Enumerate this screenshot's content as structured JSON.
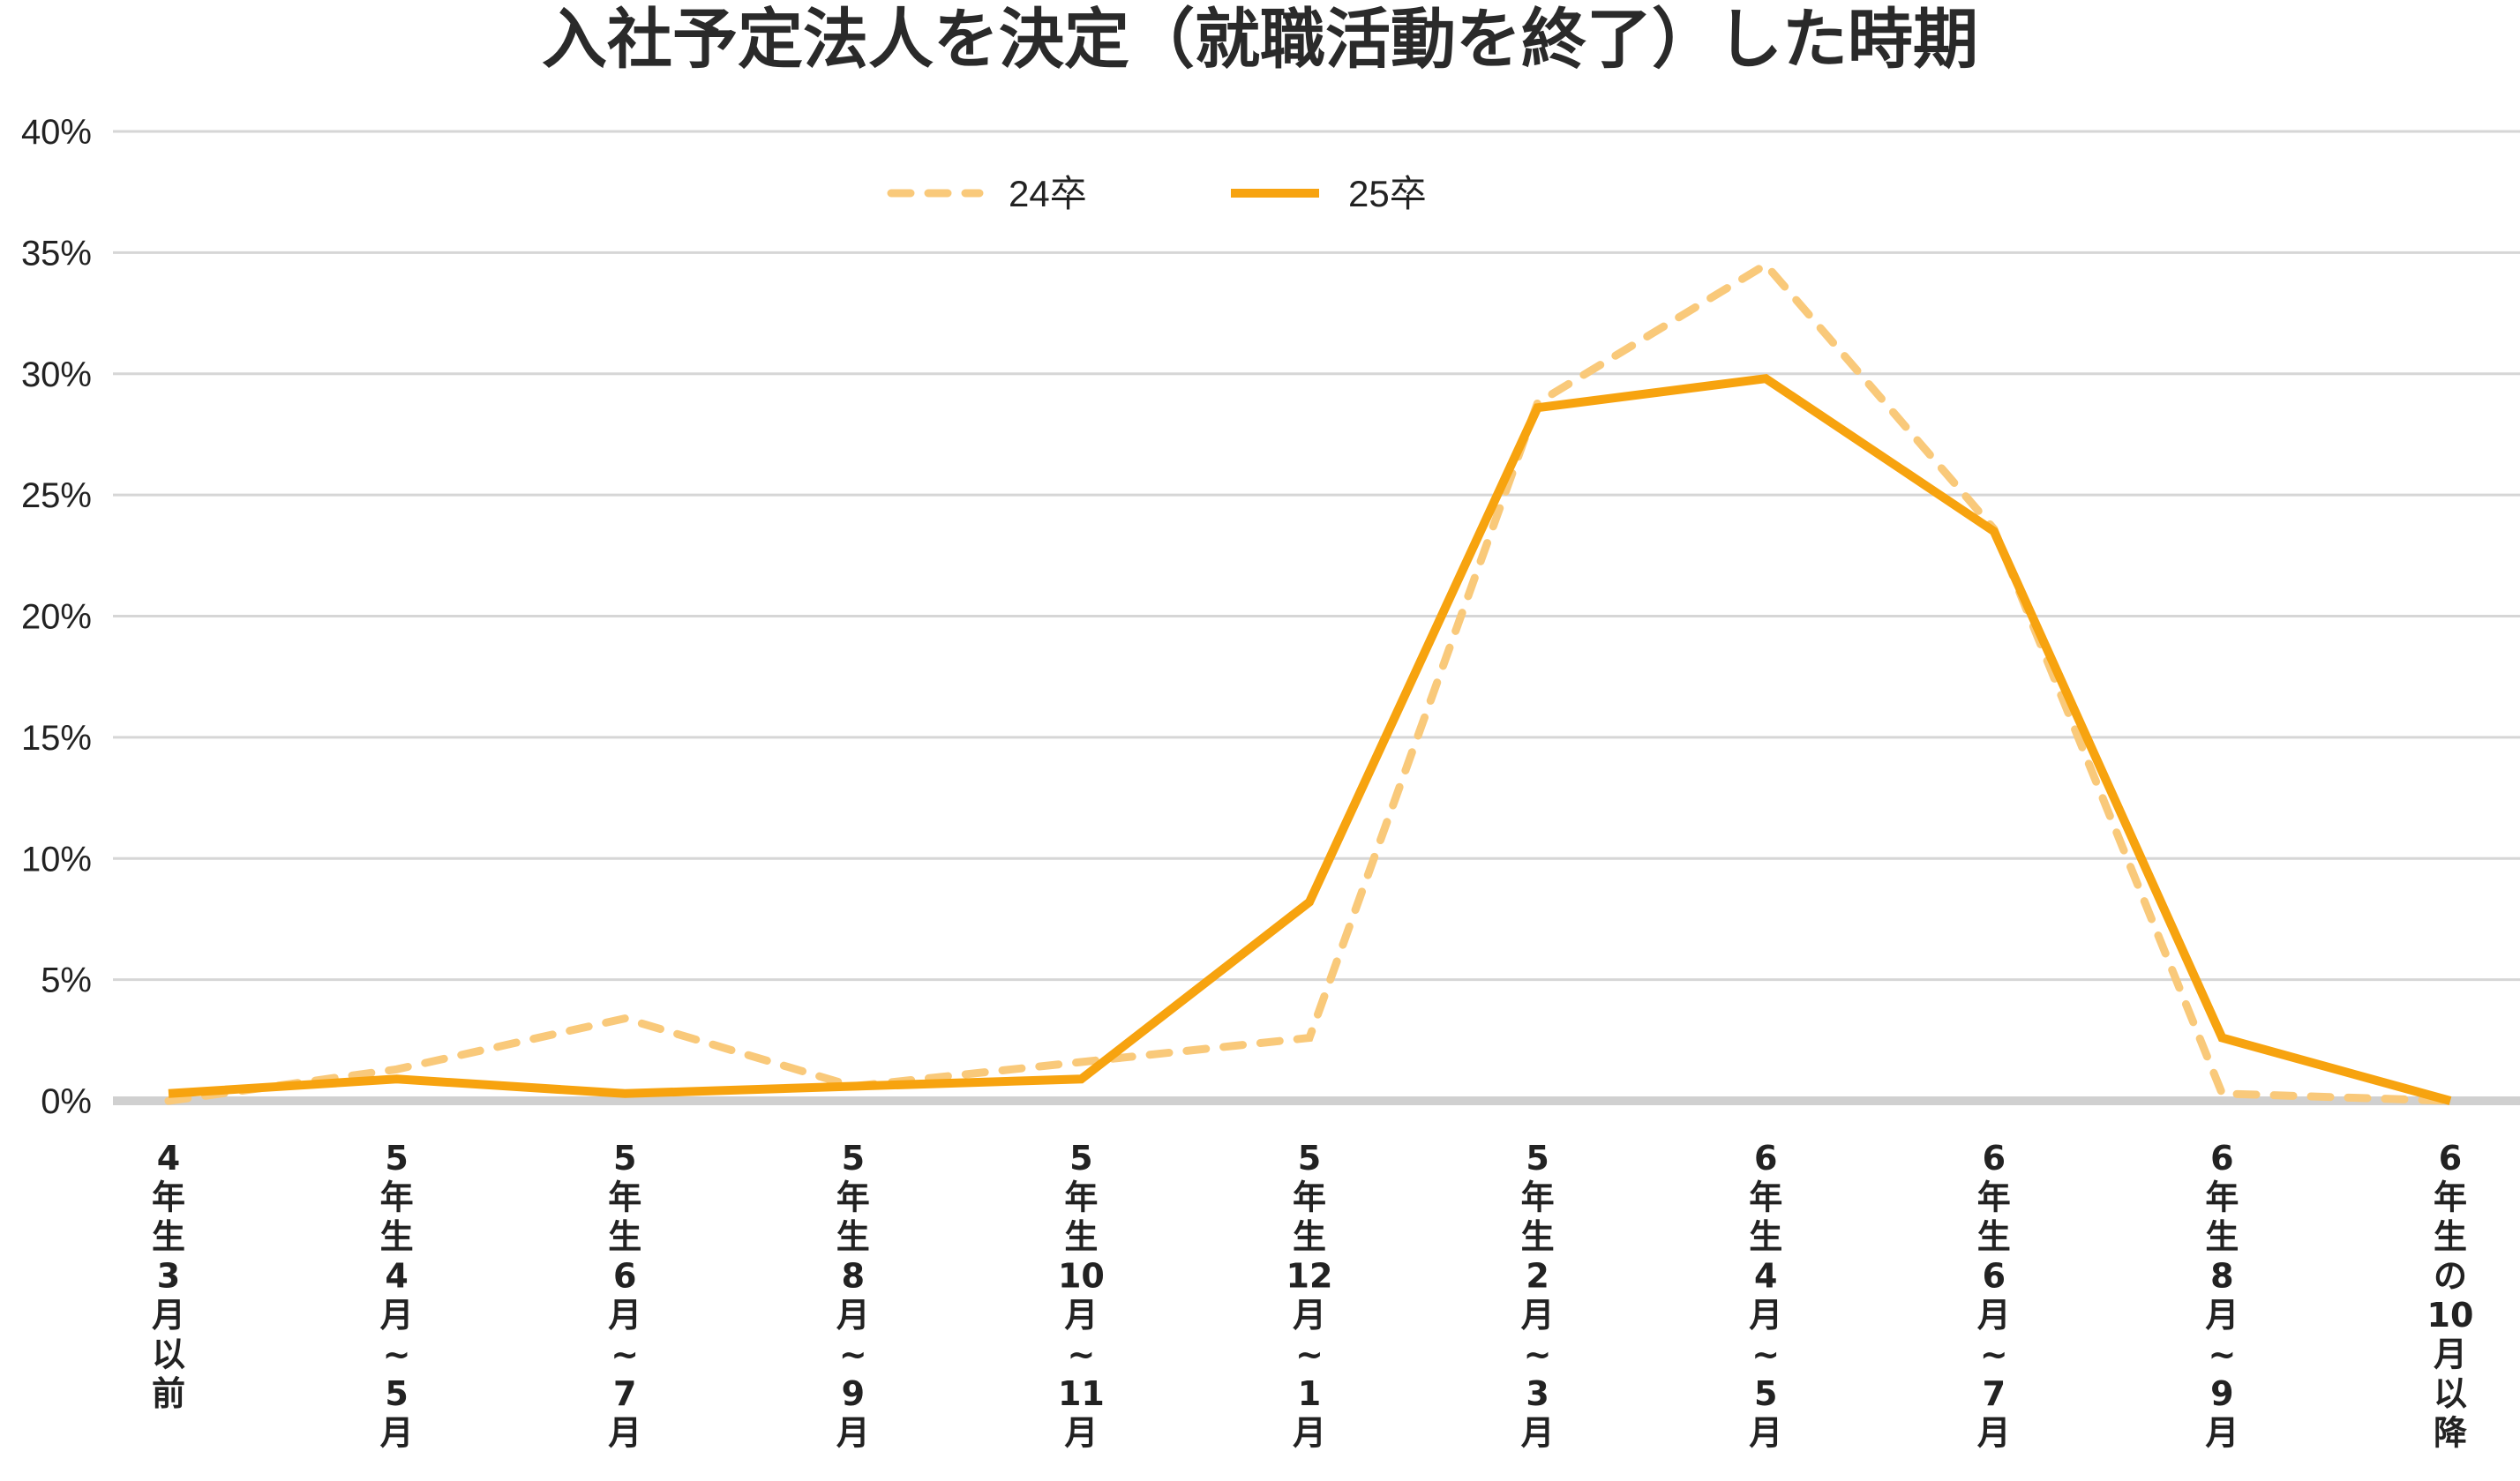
{
  "chart_data": {
    "type": "line",
    "title": "入社予定法人を決定（就職活動を終了）した時期",
    "xlabel": "",
    "ylabel": "",
    "ylim": [
      0,
      40
    ],
    "yticks": [
      0,
      5,
      10,
      15,
      20,
      25,
      30,
      35,
      40
    ],
    "ytick_labels": [
      "0%",
      "5%",
      "10%",
      "15%",
      "20%",
      "25%",
      "30%",
      "35%",
      "40%"
    ],
    "grid": true,
    "legend_position": "top-center",
    "categories": [
      "4年生3月以前",
      "5年生4月~5月",
      "5年生6月~7月",
      "5年生8月~9月",
      "5年生10月~11月",
      "5年生12月~1月",
      "5年生2月~3月",
      "6年生4月~5月",
      "6年生6月~7月",
      "6年生8月~9月",
      "6年生の10月以降"
    ],
    "category_lines": [
      [
        "4",
        "年",
        "生",
        "3",
        "月",
        "以",
        "前"
      ],
      [
        "5",
        "年",
        "生",
        "4",
        "月",
        "~",
        "5",
        "月"
      ],
      [
        "5",
        "年",
        "生",
        "6",
        "月",
        "~",
        "7",
        "月"
      ],
      [
        "5",
        "年",
        "生",
        "8",
        "月",
        "~",
        "9",
        "月"
      ],
      [
        "5",
        "年",
        "生",
        "10",
        "月",
        "~",
        "11",
        "月"
      ],
      [
        "5",
        "年",
        "生",
        "12",
        "月",
        "~",
        "1",
        "月"
      ],
      [
        "5",
        "年",
        "生",
        "2",
        "月",
        "~",
        "3",
        "月"
      ],
      [
        "6",
        "年",
        "生",
        "4",
        "月",
        "~",
        "5",
        "月"
      ],
      [
        "6",
        "年",
        "生",
        "6",
        "月",
        "~",
        "7",
        "月"
      ],
      [
        "6",
        "年",
        "生",
        "8",
        "月",
        "~",
        "9",
        "月"
      ],
      [
        "6",
        "年",
        "生",
        "の",
        "10",
        "月",
        "以",
        "降"
      ]
    ],
    "series": [
      {
        "name": "24卒",
        "style": "dashed",
        "color": "#F9C97A",
        "values": [
          0.0,
          1.3,
          3.4,
          0.6,
          1.6,
          2.6,
          28.8,
          34.5,
          23.6,
          0.3,
          0.0
        ]
      },
      {
        "name": "25卒",
        "style": "solid",
        "color": "#F7A30F",
        "values": [
          0.3,
          0.9,
          0.3,
          0.6,
          0.9,
          8.2,
          28.6,
          29.8,
          23.5,
          2.6,
          0.0
        ]
      }
    ],
    "colors": {
      "grid": "#d6d6d6",
      "baseline": "#d0d0d0",
      "text": "#222222"
    }
  }
}
